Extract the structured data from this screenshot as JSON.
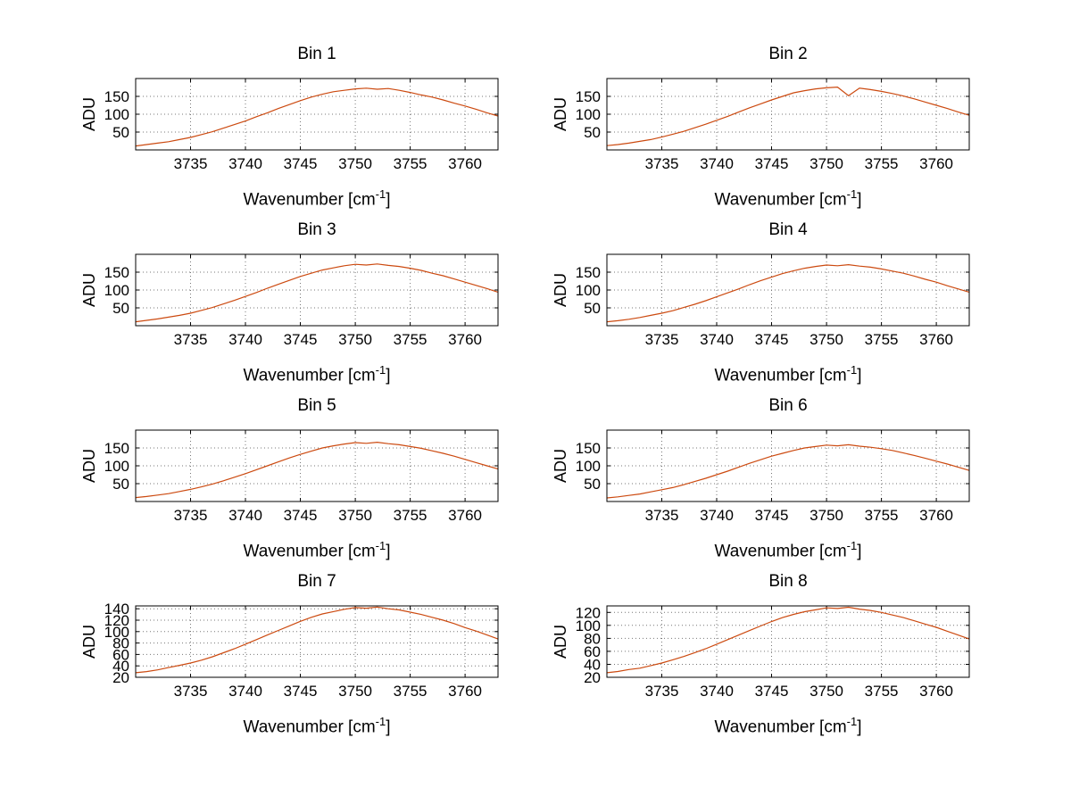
{
  "figure": {
    "background": "#ffffff"
  },
  "chart_data": {
    "type": "line",
    "layout": {
      "rows": 4,
      "cols": 2,
      "grid": "dotted",
      "legend": "none"
    },
    "xlabel_prefix": "Wavenumber [cm",
    "xlabel_sup": "-1",
    "xlabel_suffix": "]",
    "line_color": "#cc4a10",
    "xlim": [
      3730,
      3763
    ],
    "xticks": [
      3735,
      3740,
      3745,
      3750,
      3755,
      3760
    ],
    "x": [
      3730,
      3731,
      3732,
      3733,
      3734,
      3735,
      3736,
      3737,
      3738,
      3739,
      3740,
      3741,
      3742,
      3743,
      3744,
      3745,
      3746,
      3747,
      3748,
      3749,
      3750,
      3751,
      3752,
      3753,
      3754,
      3755,
      3756,
      3757,
      3758,
      3759,
      3760,
      3761,
      3762,
      3763
    ],
    "subplots": [
      {
        "title": "Bin 1",
        "ylabel": "ADU",
        "yticks": [
          50,
          100,
          150
        ],
        "ylim": [
          0,
          200
        ],
        "values": [
          11,
          15,
          19,
          23,
          29,
          35,
          43,
          51,
          61,
          71,
          81,
          93,
          104,
          116,
          127,
          138,
          148,
          156,
          163,
          167,
          171,
          173,
          170,
          172,
          167,
          161,
          154,
          148,
          140,
          131,
          123,
          114,
          104,
          95
        ]
      },
      {
        "title": "Bin 2",
        "ylabel": "ADU",
        "yticks": [
          50,
          100,
          150
        ],
        "ylim": [
          0,
          200
        ],
        "values": [
          12,
          15,
          19,
          24,
          29,
          36,
          44,
          52,
          62,
          72,
          83,
          94,
          106,
          118,
          129,
          140,
          150,
          160,
          166,
          171,
          174,
          176,
          152,
          173,
          169,
          164,
          158,
          151,
          143,
          134,
          125,
          116,
          106,
          97
        ]
      },
      {
        "title": "Bin 3",
        "ylabel": "ADU",
        "yticks": [
          50,
          100,
          150
        ],
        "ylim": [
          0,
          200
        ],
        "values": [
          11,
          15,
          19,
          24,
          29,
          35,
          43,
          51,
          61,
          71,
          82,
          93,
          105,
          116,
          127,
          138,
          147,
          156,
          162,
          168,
          172,
          170,
          173,
          169,
          166,
          161,
          155,
          147,
          140,
          131,
          122,
          113,
          104,
          94
        ]
      },
      {
        "title": "Bin 4",
        "ylabel": "ADU",
        "yticks": [
          50,
          100,
          150
        ],
        "ylim": [
          0,
          200
        ],
        "values": [
          11,
          14,
          18,
          23,
          29,
          35,
          42,
          51,
          60,
          70,
          81,
          92,
          103,
          115,
          126,
          136,
          146,
          154,
          161,
          166,
          170,
          168,
          171,
          167,
          164,
          159,
          153,
          147,
          139,
          130,
          122,
          112,
          103,
          94
        ]
      },
      {
        "title": "Bin 5",
        "ylabel": "ADU",
        "yticks": [
          50,
          100,
          150
        ],
        "ylim": [
          0,
          200
        ],
        "values": [
          11,
          14,
          18,
          22,
          28,
          34,
          41,
          49,
          58,
          68,
          78,
          89,
          100,
          111,
          122,
          132,
          141,
          150,
          156,
          161,
          165,
          163,
          166,
          162,
          159,
          154,
          149,
          142,
          135,
          127,
          118,
          109,
          100,
          91
        ]
      },
      {
        "title": "Bin 6",
        "ylabel": "ADU",
        "yticks": [
          50,
          100,
          150
        ],
        "ylim": [
          0,
          200
        ],
        "values": [
          10,
          13,
          17,
          21,
          27,
          33,
          39,
          47,
          56,
          65,
          75,
          85,
          96,
          107,
          117,
          127,
          135,
          143,
          150,
          154,
          158,
          156,
          159,
          155,
          152,
          148,
          143,
          136,
          129,
          121,
          113,
          105,
          96,
          87
        ]
      },
      {
        "title": "Bin 7",
        "ylabel": "ADU",
        "yticks": [
          20,
          40,
          60,
          80,
          100,
          120,
          140
        ],
        "ylim": [
          20,
          145
        ],
        "values": [
          28,
          30,
          33,
          37,
          41,
          45,
          50,
          56,
          63,
          70,
          78,
          86,
          94,
          102,
          110,
          118,
          125,
          131,
          135,
          139,
          142,
          141,
          143,
          140,
          138,
          134,
          130,
          125,
          120,
          114,
          107,
          101,
          94,
          87
        ]
      },
      {
        "title": "Bin 8",
        "ylabel": "ADU",
        "yticks": [
          20,
          40,
          60,
          80,
          100,
          120
        ],
        "ylim": [
          20,
          130
        ],
        "values": [
          27,
          29,
          32,
          34,
          38,
          42,
          47,
          52,
          58,
          64,
          71,
          78,
          85,
          92,
          99,
          106,
          112,
          117,
          121,
          124,
          127,
          126,
          128,
          125,
          123,
          120,
          116,
          112,
          107,
          102,
          97,
          91,
          85,
          79
        ]
      }
    ]
  }
}
